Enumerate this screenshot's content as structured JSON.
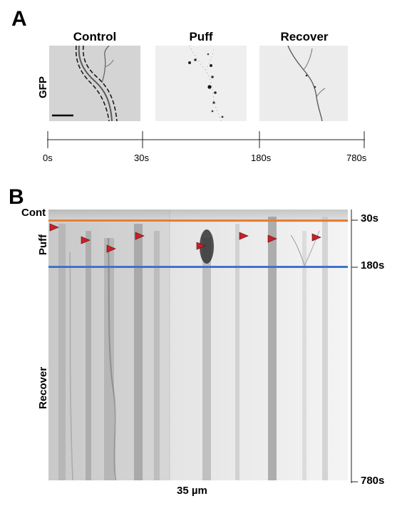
{
  "panel_a": {
    "letter": "A",
    "titles": [
      "Control",
      "Puff",
      "Recover"
    ],
    "row_label": "GFP",
    "timeline_ticks": [
      "0s",
      "30s",
      "180s",
      "780s"
    ]
  },
  "panel_b": {
    "letter": "B",
    "row_labels": [
      "Cont",
      "Puff",
      "Recover"
    ],
    "time_labels": [
      "30s",
      "180s",
      "780s"
    ],
    "scale_label": "35 µm",
    "colors": {
      "control_line": "#e87f2f",
      "puff_line": "#3f73c9",
      "arrowhead": "#c8202a"
    }
  }
}
